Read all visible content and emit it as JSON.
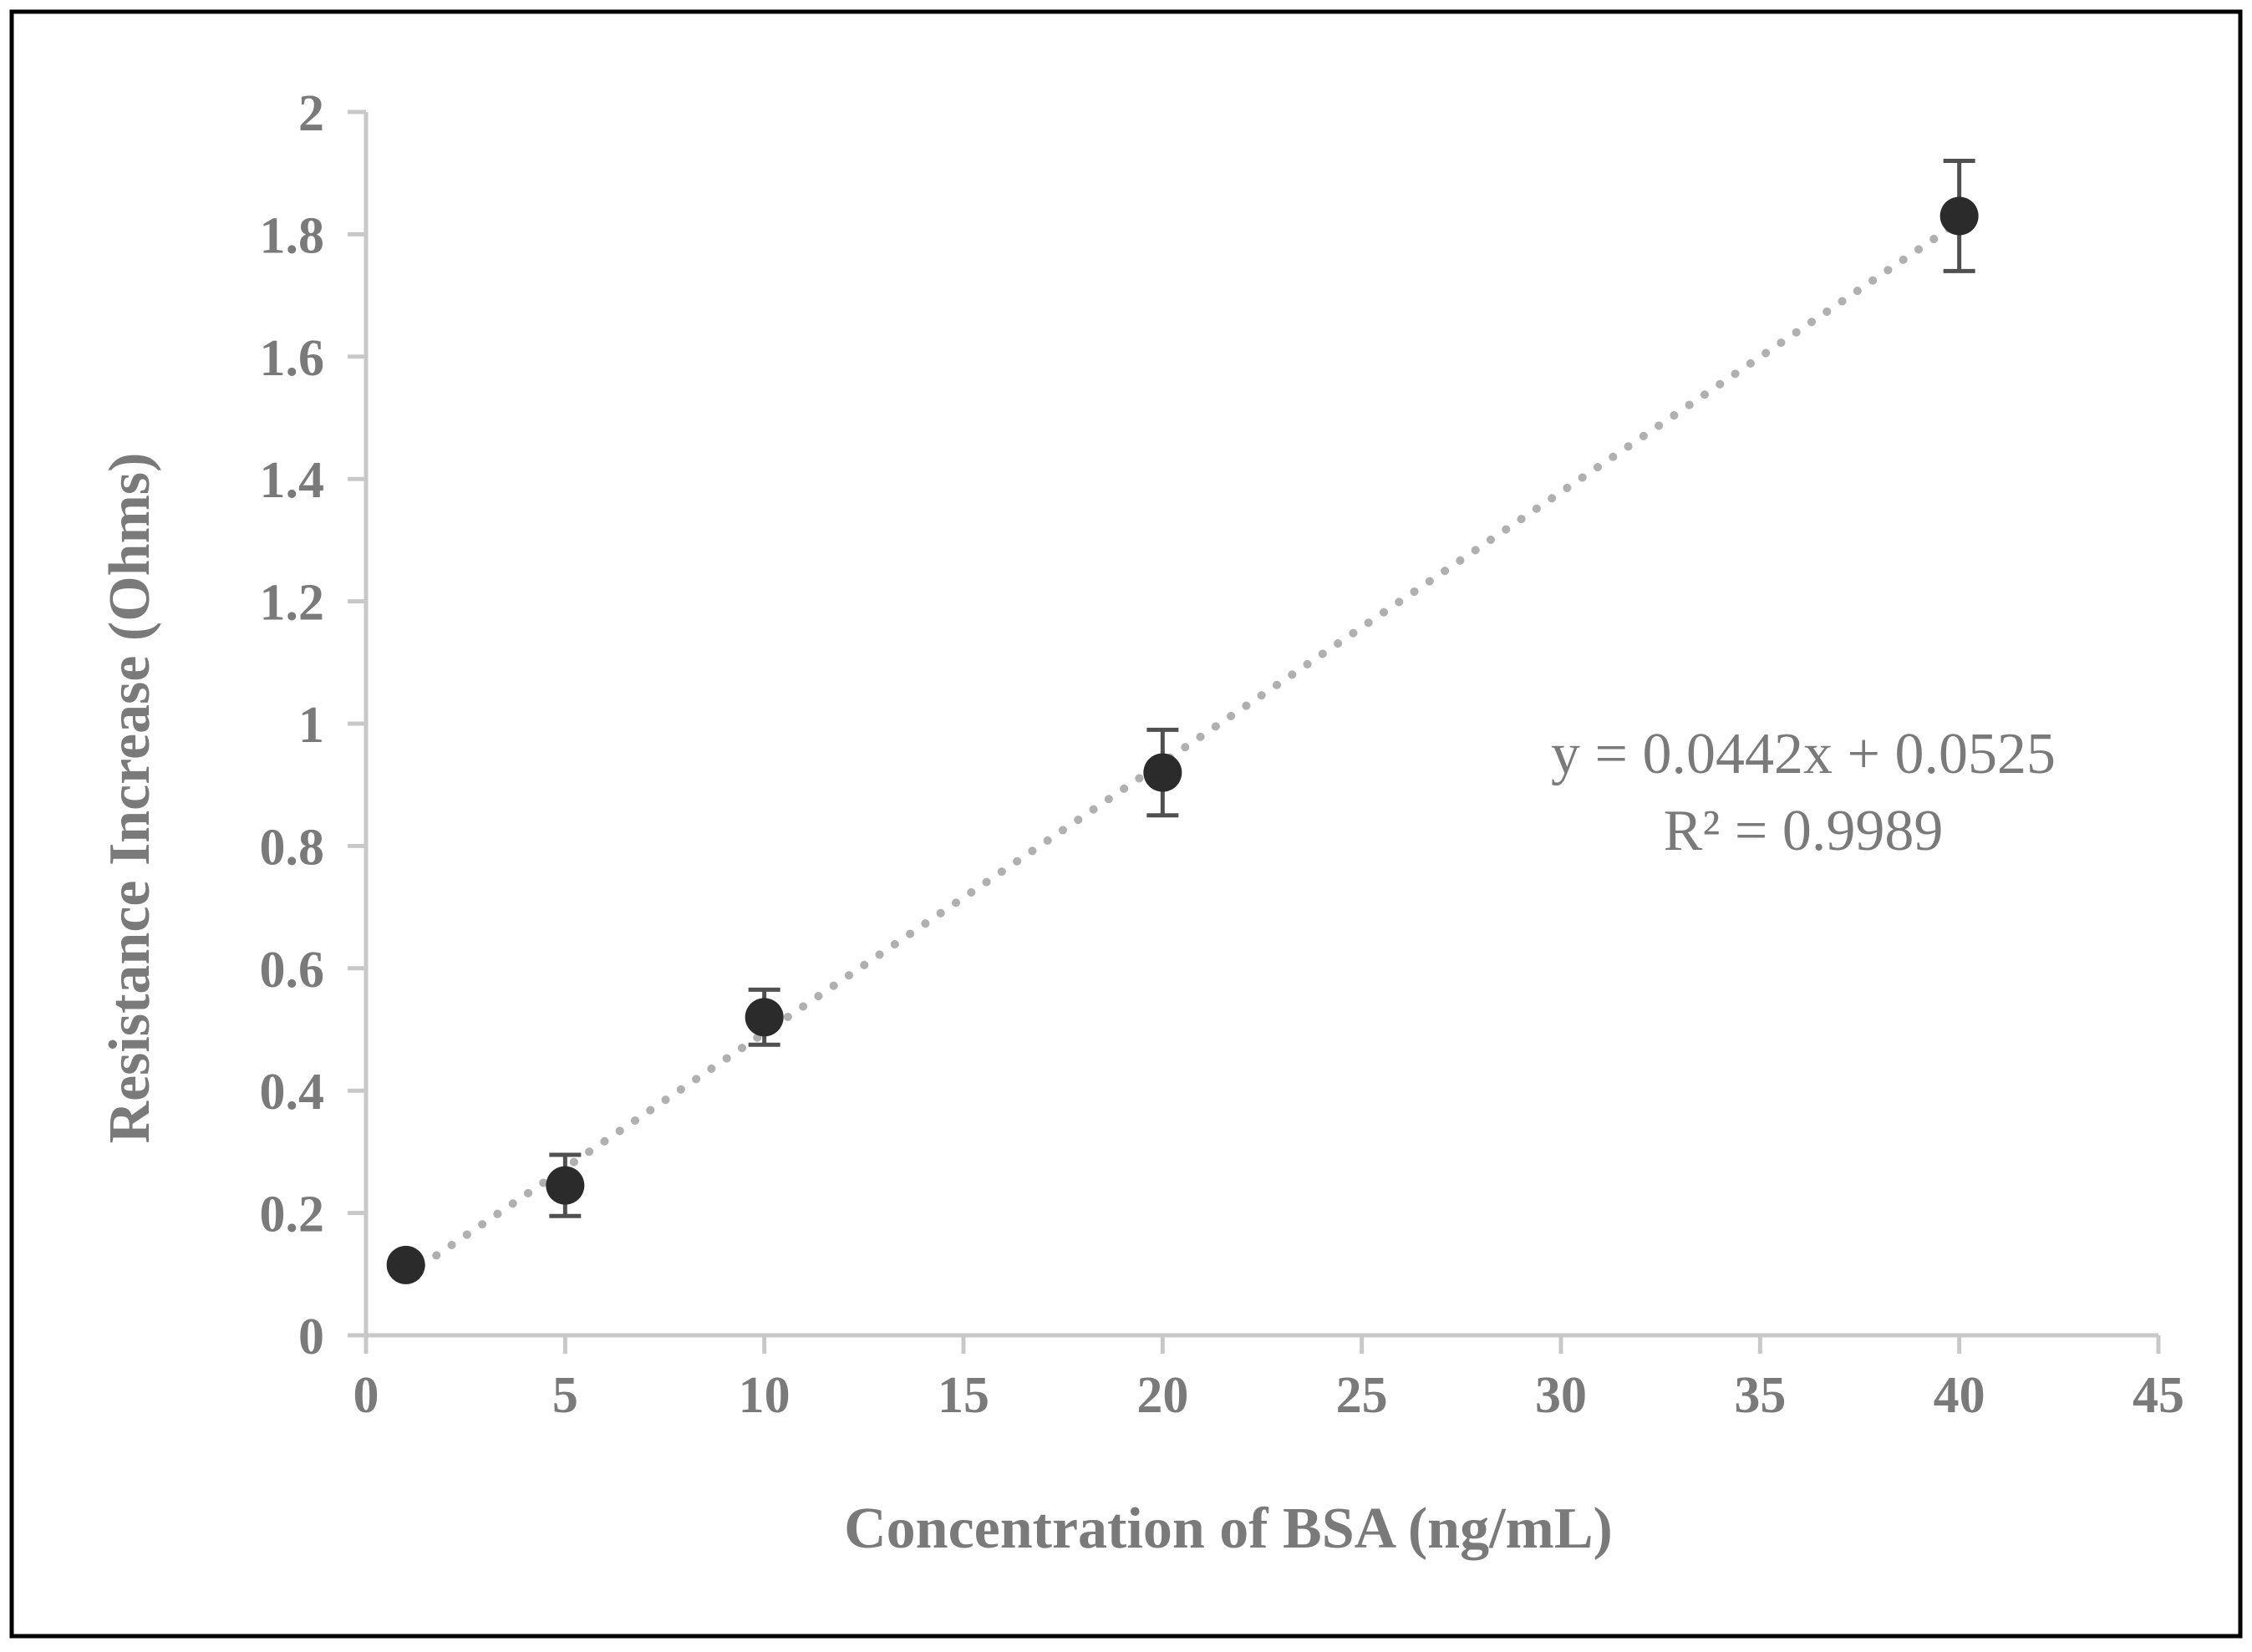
{
  "chart_data": {
    "type": "scatter",
    "title": "",
    "xlabel": "Concentration of BSA (ng/mL)",
    "ylabel": "Resistance Increase (Ohms)",
    "xlim": [
      0,
      45
    ],
    "ylim": [
      0,
      2
    ],
    "x_ticks": [
      0,
      5,
      10,
      15,
      20,
      25,
      30,
      35,
      40,
      45
    ],
    "x_tick_labels": [
      "0",
      "5",
      "10",
      "15",
      "20",
      "25",
      "30",
      "35",
      "40",
      "45"
    ],
    "y_ticks": [
      0,
      0.2,
      0.4,
      0.6,
      0.8,
      1,
      1.2,
      1.4,
      1.6,
      1.8,
      2
    ],
    "y_tick_labels": [
      "0",
      "0.2",
      "0.4",
      "0.6",
      "0.8",
      "1",
      "1.2",
      "1.4",
      "1.6",
      "1.8",
      "2"
    ],
    "grid": false,
    "series": [
      {
        "name": "BSA",
        "x": [
          1,
          5,
          10,
          20,
          40
        ],
        "y": [
          0.115,
          0.245,
          0.52,
          0.92,
          1.83
        ],
        "error": [
          0.0,
          0.05,
          0.045,
          0.07,
          0.09
        ],
        "marker_color": "#2b2b2b"
      }
    ],
    "trendline": {
      "type": "linear",
      "slope": 0.0442,
      "intercept": 0.0525,
      "x_range": [
        1,
        40
      ],
      "color": "#b0b0b0",
      "equation": "y = 0.0442x + 0.0525",
      "r_squared": "R² = 0.9989"
    },
    "colors": {
      "axis": "#c8c8c8",
      "text": "#7a7a7a",
      "errorbar": "#505050",
      "frame": "#000000"
    }
  }
}
